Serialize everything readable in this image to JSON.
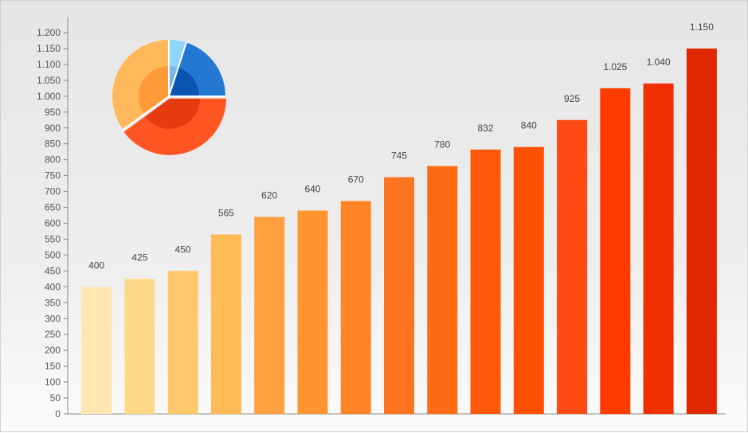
{
  "chart_data": [
    {
      "type": "bar",
      "categories": [
        "",
        "",
        "",
        "",
        "",
        "",
        "",
        "",
        "",
        "",
        "",
        "",
        "",
        "",
        ""
      ],
      "values": [
        400,
        425,
        450,
        565,
        620,
        640,
        670,
        745,
        780,
        832,
        840,
        925,
        1025,
        1040,
        1150
      ],
      "value_labels": [
        "400",
        "425",
        "450",
        "565",
        "620",
        "640",
        "670",
        "745",
        "780",
        "832",
        "840",
        "925",
        "1.025",
        "1.040",
        "1.150"
      ],
      "colors": [
        "#ffe6b3",
        "#ffd98a",
        "#ffc86a",
        "#ffbb55",
        "#ffa040",
        "#ff9430",
        "#ff8426",
        "#ff7420",
        "#ff6a14",
        "#ff5a0a",
        "#ff5005",
        "#ff4a14",
        "#ff3c00",
        "#f03000",
        "#e02800"
      ],
      "ylim": [
        0,
        1200
      ],
      "yticks": [
        0,
        50,
        100,
        150,
        200,
        250,
        300,
        350,
        400,
        450,
        500,
        550,
        600,
        650,
        700,
        750,
        800,
        850,
        900,
        950,
        1000,
        1050,
        1100,
        1150,
        1200
      ],
      "ytick_labels": [
        "0",
        "50",
        "100",
        "150",
        "200",
        "250",
        "300",
        "350",
        "400",
        "450",
        "500",
        "550",
        "600",
        "650",
        "700",
        "750",
        "800",
        "850",
        "900",
        "950",
        "1.000",
        "1.050",
        "1.100",
        "1.150",
        "1.200"
      ],
      "grid": false,
      "legend": "none",
      "title": "",
      "xlabel": "",
      "ylabel": ""
    },
    {
      "type": "pie",
      "slices": [
        {
          "value": 5,
          "color": "#8fd6ff",
          "inner_color": "#7ab8e8"
        },
        {
          "value": 20,
          "color": "#2478d2",
          "inner_color": "#0a55b0"
        },
        {
          "value": 40,
          "color": "#ff5522",
          "inner_color": "#e63a10",
          "exploded": true
        },
        {
          "value": 35,
          "color": "#ffb95a",
          "inner_color": "#ff9a38"
        }
      ],
      "title": "",
      "legend": "none"
    }
  ]
}
